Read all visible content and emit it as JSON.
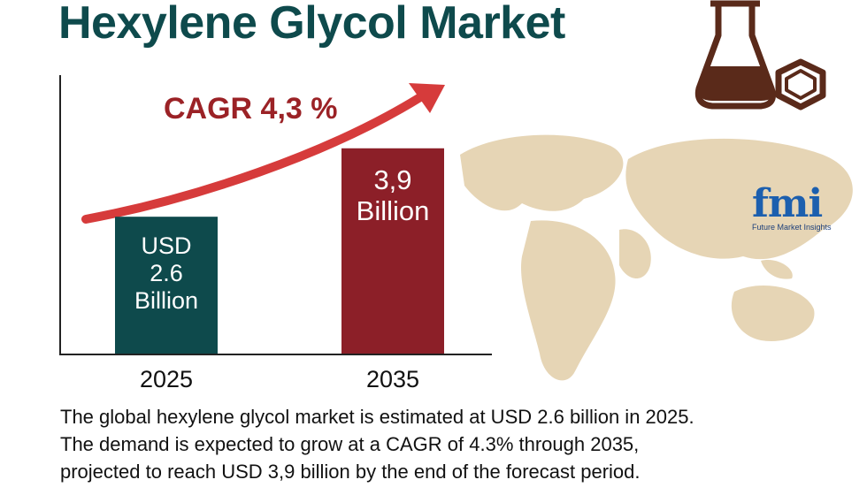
{
  "chart_data": {
    "type": "bar",
    "title": "Hexylene Glycol Market",
    "categories": [
      "2025",
      "2035"
    ],
    "values": [
      2.6,
      3.9
    ],
    "value_labels": [
      "USD\n2.6\nBillion",
      "3,9\nBillion"
    ],
    "colors": [
      "#0e4a4c",
      "#8c1f28"
    ],
    "ylim": [
      0,
      4.4
    ],
    "annotation": "CAGR 4,3 %",
    "description": "The global hexylene glycol market is estimated at USD 2.6 billion in 2025.\nThe demand is expected to grow at a CAGR of 4.3% through 2035,\nprojected to reach USD 3,9 billion by the end of the forecast period."
  },
  "logo": {
    "mark": "fmi",
    "name": "Future Market Insights"
  }
}
